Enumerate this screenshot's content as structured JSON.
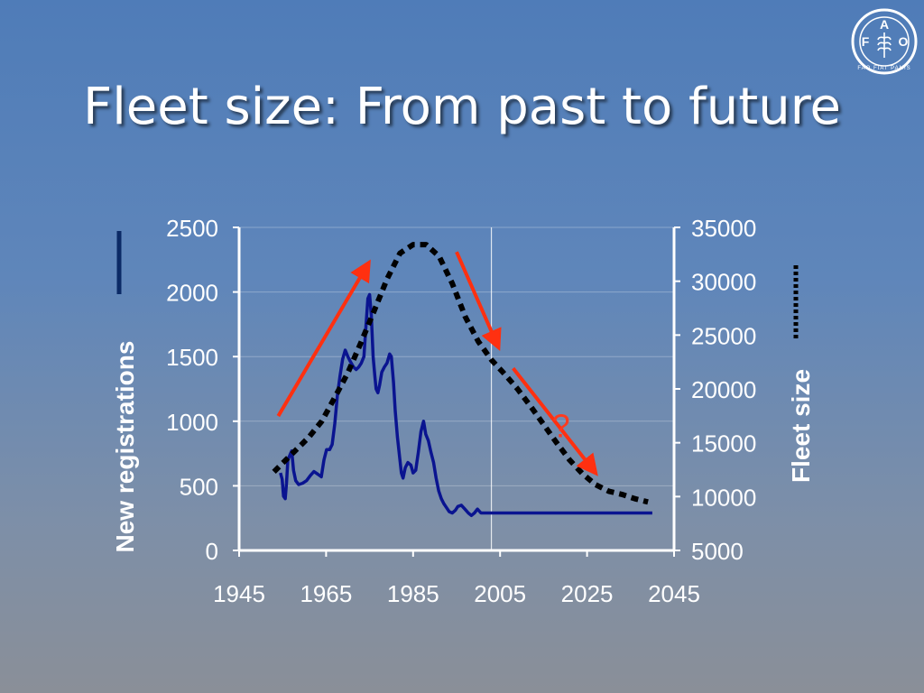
{
  "slide": {
    "title": "Fleet size: From past to future"
  },
  "logo": {
    "text": "FAO FIAT PANIS",
    "icon": "fao-logo-icon"
  },
  "colors": {
    "registrations": "#0a1490",
    "fleet": "#000000",
    "trend_arrow": "#ff3010",
    "axis": "#ffffff"
  },
  "chart_data": {
    "type": "line",
    "xlabel": "",
    "ylabel_left": "New registrations",
    "ylabel_right": "Fleet size",
    "x_ticks": [
      "1945",
      "1965",
      "1985",
      "2005",
      "2025",
      "2045"
    ],
    "xlim": [
      1945,
      2045
    ],
    "y_left_ticks": [
      "0",
      "500",
      "1000",
      "1500",
      "2000",
      "2500"
    ],
    "ylim_left": [
      0,
      2500
    ],
    "y_right_ticks": [
      "5000",
      "10000",
      "15000",
      "20000",
      "25000",
      "30000",
      "35000"
    ],
    "ylim_right": [
      5000,
      35000
    ],
    "vertical_marker_year": 2003,
    "legend": "side markers: solid line left of left axis, dotted line right of right axis",
    "series": [
      {
        "name": "",
        "axis": "left",
        "style": "solid",
        "points": [
          [
            1954.5,
            600
          ],
          [
            1954.9,
            550
          ],
          [
            1955.2,
            420
          ],
          [
            1955.6,
            400
          ],
          [
            1955.9,
            520
          ],
          [
            1956.2,
            700
          ],
          [
            1956.7,
            740
          ],
          [
            1957.1,
            770
          ],
          [
            1957.5,
            620
          ],
          [
            1958.0,
            540
          ],
          [
            1958.7,
            510
          ],
          [
            1959.6,
            520
          ],
          [
            1960.5,
            540
          ],
          [
            1961.4,
            580
          ],
          [
            1962.2,
            610
          ],
          [
            1963.1,
            590
          ],
          [
            1963.9,
            570
          ],
          [
            1964.5,
            700
          ],
          [
            1965.1,
            780
          ],
          [
            1965.8,
            780
          ],
          [
            1966.4,
            820
          ],
          [
            1967.0,
            980
          ],
          [
            1967.6,
            1200
          ],
          [
            1968.2,
            1350
          ],
          [
            1968.8,
            1480
          ],
          [
            1969.4,
            1550
          ],
          [
            1970.0,
            1500
          ],
          [
            1970.6,
            1460
          ],
          [
            1971.3,
            1420
          ],
          [
            1971.9,
            1400
          ],
          [
            1972.5,
            1420
          ],
          [
            1973.1,
            1450
          ],
          [
            1973.7,
            1500
          ],
          [
            1974.2,
            1750
          ],
          [
            1974.6,
            1950
          ],
          [
            1975.0,
            1980
          ],
          [
            1975.4,
            1820
          ],
          [
            1975.8,
            1500
          ],
          [
            1976.2,
            1350
          ],
          [
            1976.5,
            1250
          ],
          [
            1976.9,
            1220
          ],
          [
            1977.3,
            1280
          ],
          [
            1977.8,
            1380
          ],
          [
            1978.4,
            1420
          ],
          [
            1979.0,
            1450
          ],
          [
            1979.6,
            1520
          ],
          [
            1980.0,
            1500
          ],
          [
            1980.5,
            1300
          ],
          [
            1980.9,
            1080
          ],
          [
            1981.4,
            880
          ],
          [
            1981.9,
            720
          ],
          [
            1982.3,
            600
          ],
          [
            1982.7,
            560
          ],
          [
            1983.2,
            640
          ],
          [
            1983.8,
            680
          ],
          [
            1984.5,
            660
          ],
          [
            1985.0,
            600
          ],
          [
            1985.6,
            620
          ],
          [
            1986.2,
            760
          ],
          [
            1986.8,
            920
          ],
          [
            1987.4,
            1000
          ],
          [
            1987.9,
            900
          ],
          [
            1988.5,
            850
          ],
          [
            1989.1,
            760
          ],
          [
            1989.7,
            680
          ],
          [
            1990.3,
            560
          ],
          [
            1990.9,
            460
          ],
          [
            1991.5,
            400
          ],
          [
            1992.1,
            360
          ],
          [
            1992.7,
            330
          ],
          [
            1993.3,
            300
          ],
          [
            1994.0,
            290
          ],
          [
            1994.7,
            310
          ],
          [
            1995.3,
            340
          ],
          [
            1996.1,
            350
          ],
          [
            1996.9,
            320
          ],
          [
            1997.7,
            290
          ],
          [
            1998.4,
            270
          ],
          [
            1999.1,
            290
          ],
          [
            1999.8,
            320
          ],
          [
            2000.6,
            290
          ],
          [
            2004,
            290
          ],
          [
            2012,
            290
          ],
          [
            2020,
            290
          ],
          [
            2030,
            290
          ],
          [
            2040,
            290
          ]
        ]
      },
      {
        "name": "",
        "axis": "right",
        "style": "dotted",
        "points": [
          [
            1953,
            12300
          ],
          [
            1955,
            13100
          ],
          [
            1958,
            14300
          ],
          [
            1961,
            15500
          ],
          [
            1964,
            17000
          ],
          [
            1967,
            19200
          ],
          [
            1970,
            21500
          ],
          [
            1973,
            24300
          ],
          [
            1976,
            27200
          ],
          [
            1979,
            30200
          ],
          [
            1982,
            32600
          ],
          [
            1985,
            33400
          ],
          [
            1988,
            33400
          ],
          [
            1991,
            32300
          ],
          [
            1994,
            29800
          ],
          [
            1997,
            26700
          ],
          [
            2000,
            24400
          ],
          [
            2003,
            22700
          ],
          [
            2006,
            21400
          ],
          [
            2009,
            20000
          ],
          [
            2012,
            18400
          ],
          [
            2015,
            16700
          ],
          [
            2018,
            15000
          ],
          [
            2021,
            13400
          ],
          [
            2024,
            12100
          ],
          [
            2027,
            11100
          ],
          [
            2030,
            10500
          ],
          [
            2033,
            10200
          ],
          [
            2036,
            9800
          ],
          [
            2039,
            9500
          ]
        ]
      }
    ],
    "annotations": [
      {
        "type": "arrow",
        "from": [
          1954,
          1040
        ],
        "to": [
          1974,
          2180
        ],
        "axis": "left"
      },
      {
        "type": "arrow",
        "from": [
          1995,
          2310
        ],
        "to": [
          2004,
          1620
        ],
        "axis": "left"
      },
      {
        "type": "arrow",
        "from": [
          2008,
          1410
        ],
        "to": [
          2026,
          640
        ],
        "axis": "left"
      },
      {
        "type": "text",
        "text": "?",
        "at": [
          2019,
          960
        ],
        "axis": "left"
      }
    ]
  }
}
